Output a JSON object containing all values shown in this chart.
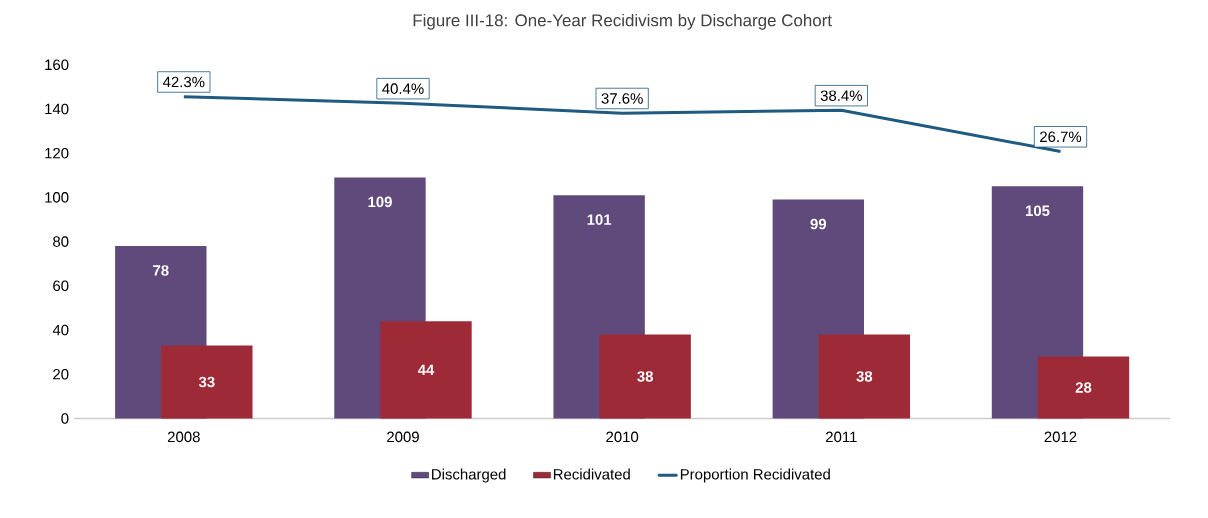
{
  "chart_data": {
    "type": "bar",
    "title": "Figure III-18: One-Year Recidivism by Discharge Cohort",
    "categories": [
      "2008",
      "2009",
      "2010",
      "2011",
      "2012"
    ],
    "series": [
      {
        "name": "Discharged",
        "color": "#604a7b",
        "values": [
          78,
          109,
          101,
          99,
          105
        ]
      },
      {
        "name": "Recidivated",
        "color": "#9e2a38",
        "values": [
          33,
          44,
          38,
          38,
          28
        ]
      },
      {
        "name": "Proportion Recidivated",
        "type": "line",
        "axis": "y2",
        "color": "#1f5a80",
        "values": [
          42.3,
          40.4,
          37.6,
          38.4,
          26.7
        ],
        "value_labels": [
          "42.3%",
          "40.4%",
          "37.6%",
          "38.4%",
          "26.7%"
        ]
      }
    ],
    "data_labels": true,
    "ylim": [
      0,
      160
    ],
    "yticks": [
      0,
      20,
      40,
      60,
      80,
      100,
      120,
      140,
      160
    ],
    "grid": false,
    "legend": "bottom",
    "marker": "none",
    "line_style": "solid"
  }
}
